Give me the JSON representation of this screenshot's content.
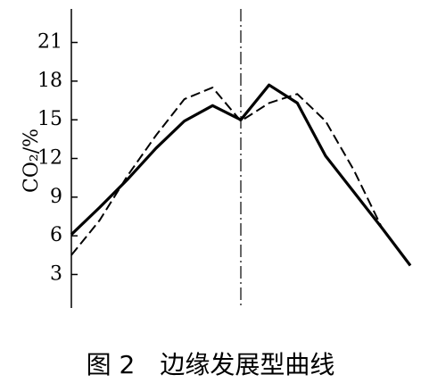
{
  "chart_data": {
    "type": "line",
    "title": "图 2　边缘发展型曲线",
    "y_label": "CO₂/%",
    "categories": [
      null,
      null,
      null,
      null,
      null,
      null,
      null,
      null,
      null,
      null,
      null,
      null,
      null
    ],
    "series": [
      {
        "color": "#000000",
        "style": "solid",
        "values": [
          6.1,
          8.2,
          10.4,
          12.8,
          14.9,
          16.1,
          15,
          17.7,
          16.3,
          12.2,
          9.4,
          6.6,
          3.7
        ]
      },
      {
        "color": "#000000",
        "style": "dashed",
        "values": [
          4.5,
          7.2,
          10.7,
          13.8,
          16.6,
          17.5,
          14.9,
          16.3,
          17,
          14.9,
          11.1,
          6.6,
          3.7
        ]
      }
    ],
    "ylim": [
      0.4,
      23.6
    ],
    "yticks": [
      3,
      6,
      9,
      12,
      15,
      18,
      21
    ],
    "grid": false
  }
}
